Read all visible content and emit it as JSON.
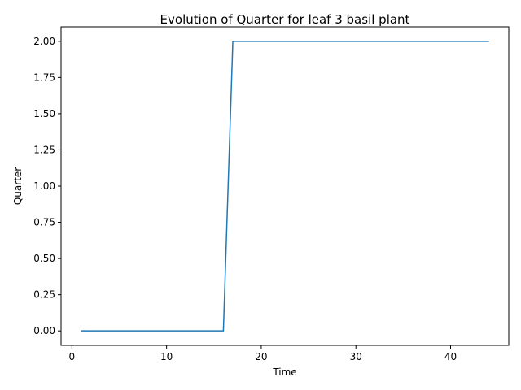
{
  "chart_data": {
    "type": "line",
    "title": "Evolution of Quarter for leaf 3 basil plant",
    "xlabel": "Time",
    "ylabel": "Quarter",
    "xlim": [
      -1.15,
      46.15
    ],
    "ylim": [
      -0.1,
      2.1
    ],
    "xticks": [
      0,
      10,
      20,
      30,
      40
    ],
    "yticks": [
      0.0,
      0.25,
      0.5,
      0.75,
      1.0,
      1.25,
      1.5,
      1.75,
      2.0
    ],
    "grid": false,
    "series": [
      {
        "color": "#1f77b4",
        "x": [
          1,
          2,
          3,
          4,
          5,
          6,
          7,
          8,
          9,
          10,
          11,
          12,
          13,
          14,
          15,
          16,
          17,
          18,
          19,
          20,
          21,
          22,
          23,
          24,
          25,
          26,
          27,
          28,
          29,
          30,
          31,
          32,
          33,
          34,
          35,
          36,
          37,
          38,
          39,
          40,
          41,
          42,
          43,
          44
        ],
        "y": [
          0,
          0,
          0,
          0,
          0,
          0,
          0,
          0,
          0,
          0,
          0,
          0,
          0,
          0,
          0,
          0,
          2,
          2,
          2,
          2,
          2,
          2,
          2,
          2,
          2,
          2,
          2,
          2,
          2,
          2,
          2,
          2,
          2,
          2,
          2,
          2,
          2,
          2,
          2,
          2,
          2,
          2,
          2,
          2
        ]
      }
    ]
  }
}
